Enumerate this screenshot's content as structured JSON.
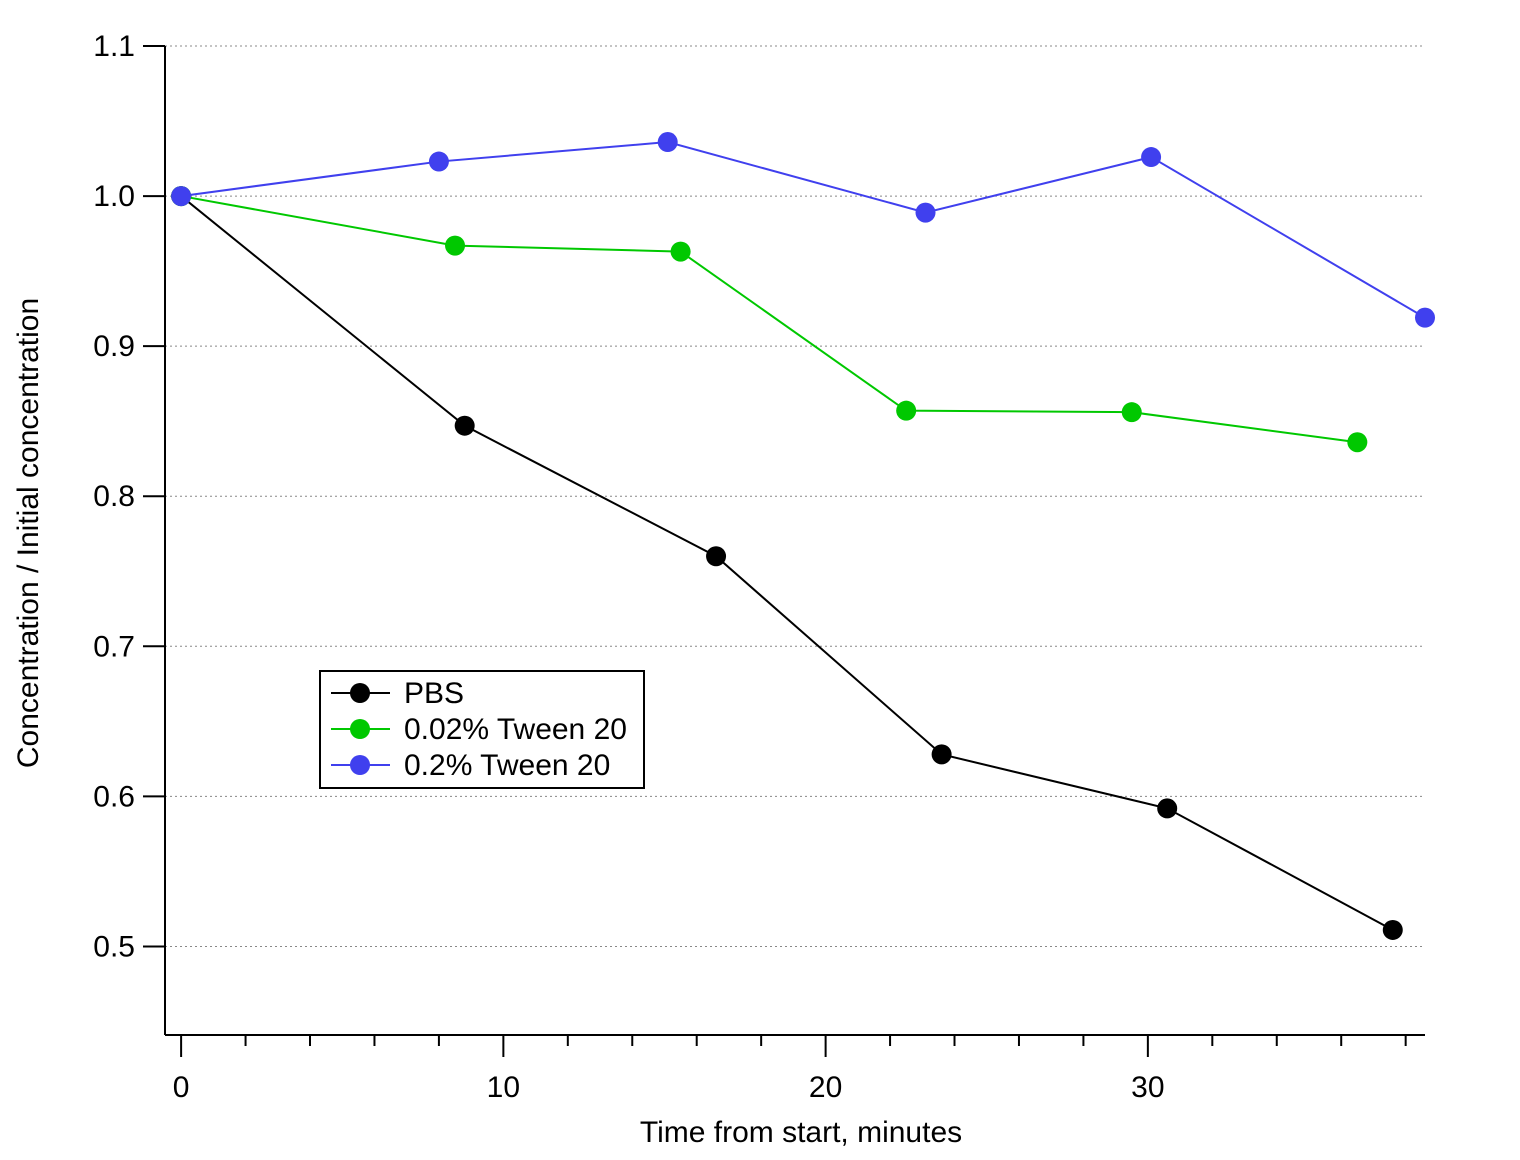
{
  "chart_data": {
    "type": "line",
    "title": "",
    "xlabel": "Time from start, minutes",
    "ylabel": "Concentration / Initial concentration",
    "xlim": [
      -0.5,
      38.6
    ],
    "ylim": [
      0.441,
      1.1
    ],
    "xticks": [
      0,
      10,
      20,
      30
    ],
    "yticks": [
      0.5,
      0.6,
      0.7,
      0.8,
      0.9,
      1.0,
      1.1
    ],
    "xtick_labels": [
      "0",
      "10",
      "20",
      "30"
    ],
    "ytick_labels": [
      "0.5",
      "0.6",
      "0.7",
      "0.8",
      "0.9",
      "1.0",
      "1.1"
    ],
    "grid": "horizontal dotted",
    "legend_position": "lower-left",
    "series": [
      {
        "name": "PBS",
        "color": "#000000",
        "x": [
          0,
          8.8,
          16.6,
          23.6,
          30.6,
          37.6
        ],
        "y": [
          1.0,
          0.847,
          0.76,
          0.628,
          0.592,
          0.511
        ]
      },
      {
        "name": "0.02% Tween 20",
        "color": "#00c800",
        "x": [
          0,
          8.5,
          15.5,
          22.5,
          29.5,
          36.5
        ],
        "y": [
          1.0,
          0.967,
          0.963,
          0.857,
          0.856,
          0.836
        ]
      },
      {
        "name": "0.2% Tween 20",
        "color": "#4040ee",
        "x": [
          0,
          8.0,
          15.1,
          23.1,
          30.1,
          38.6
        ],
        "y": [
          1.0,
          1.023,
          1.036,
          0.989,
          1.026,
          0.919
        ]
      }
    ]
  }
}
